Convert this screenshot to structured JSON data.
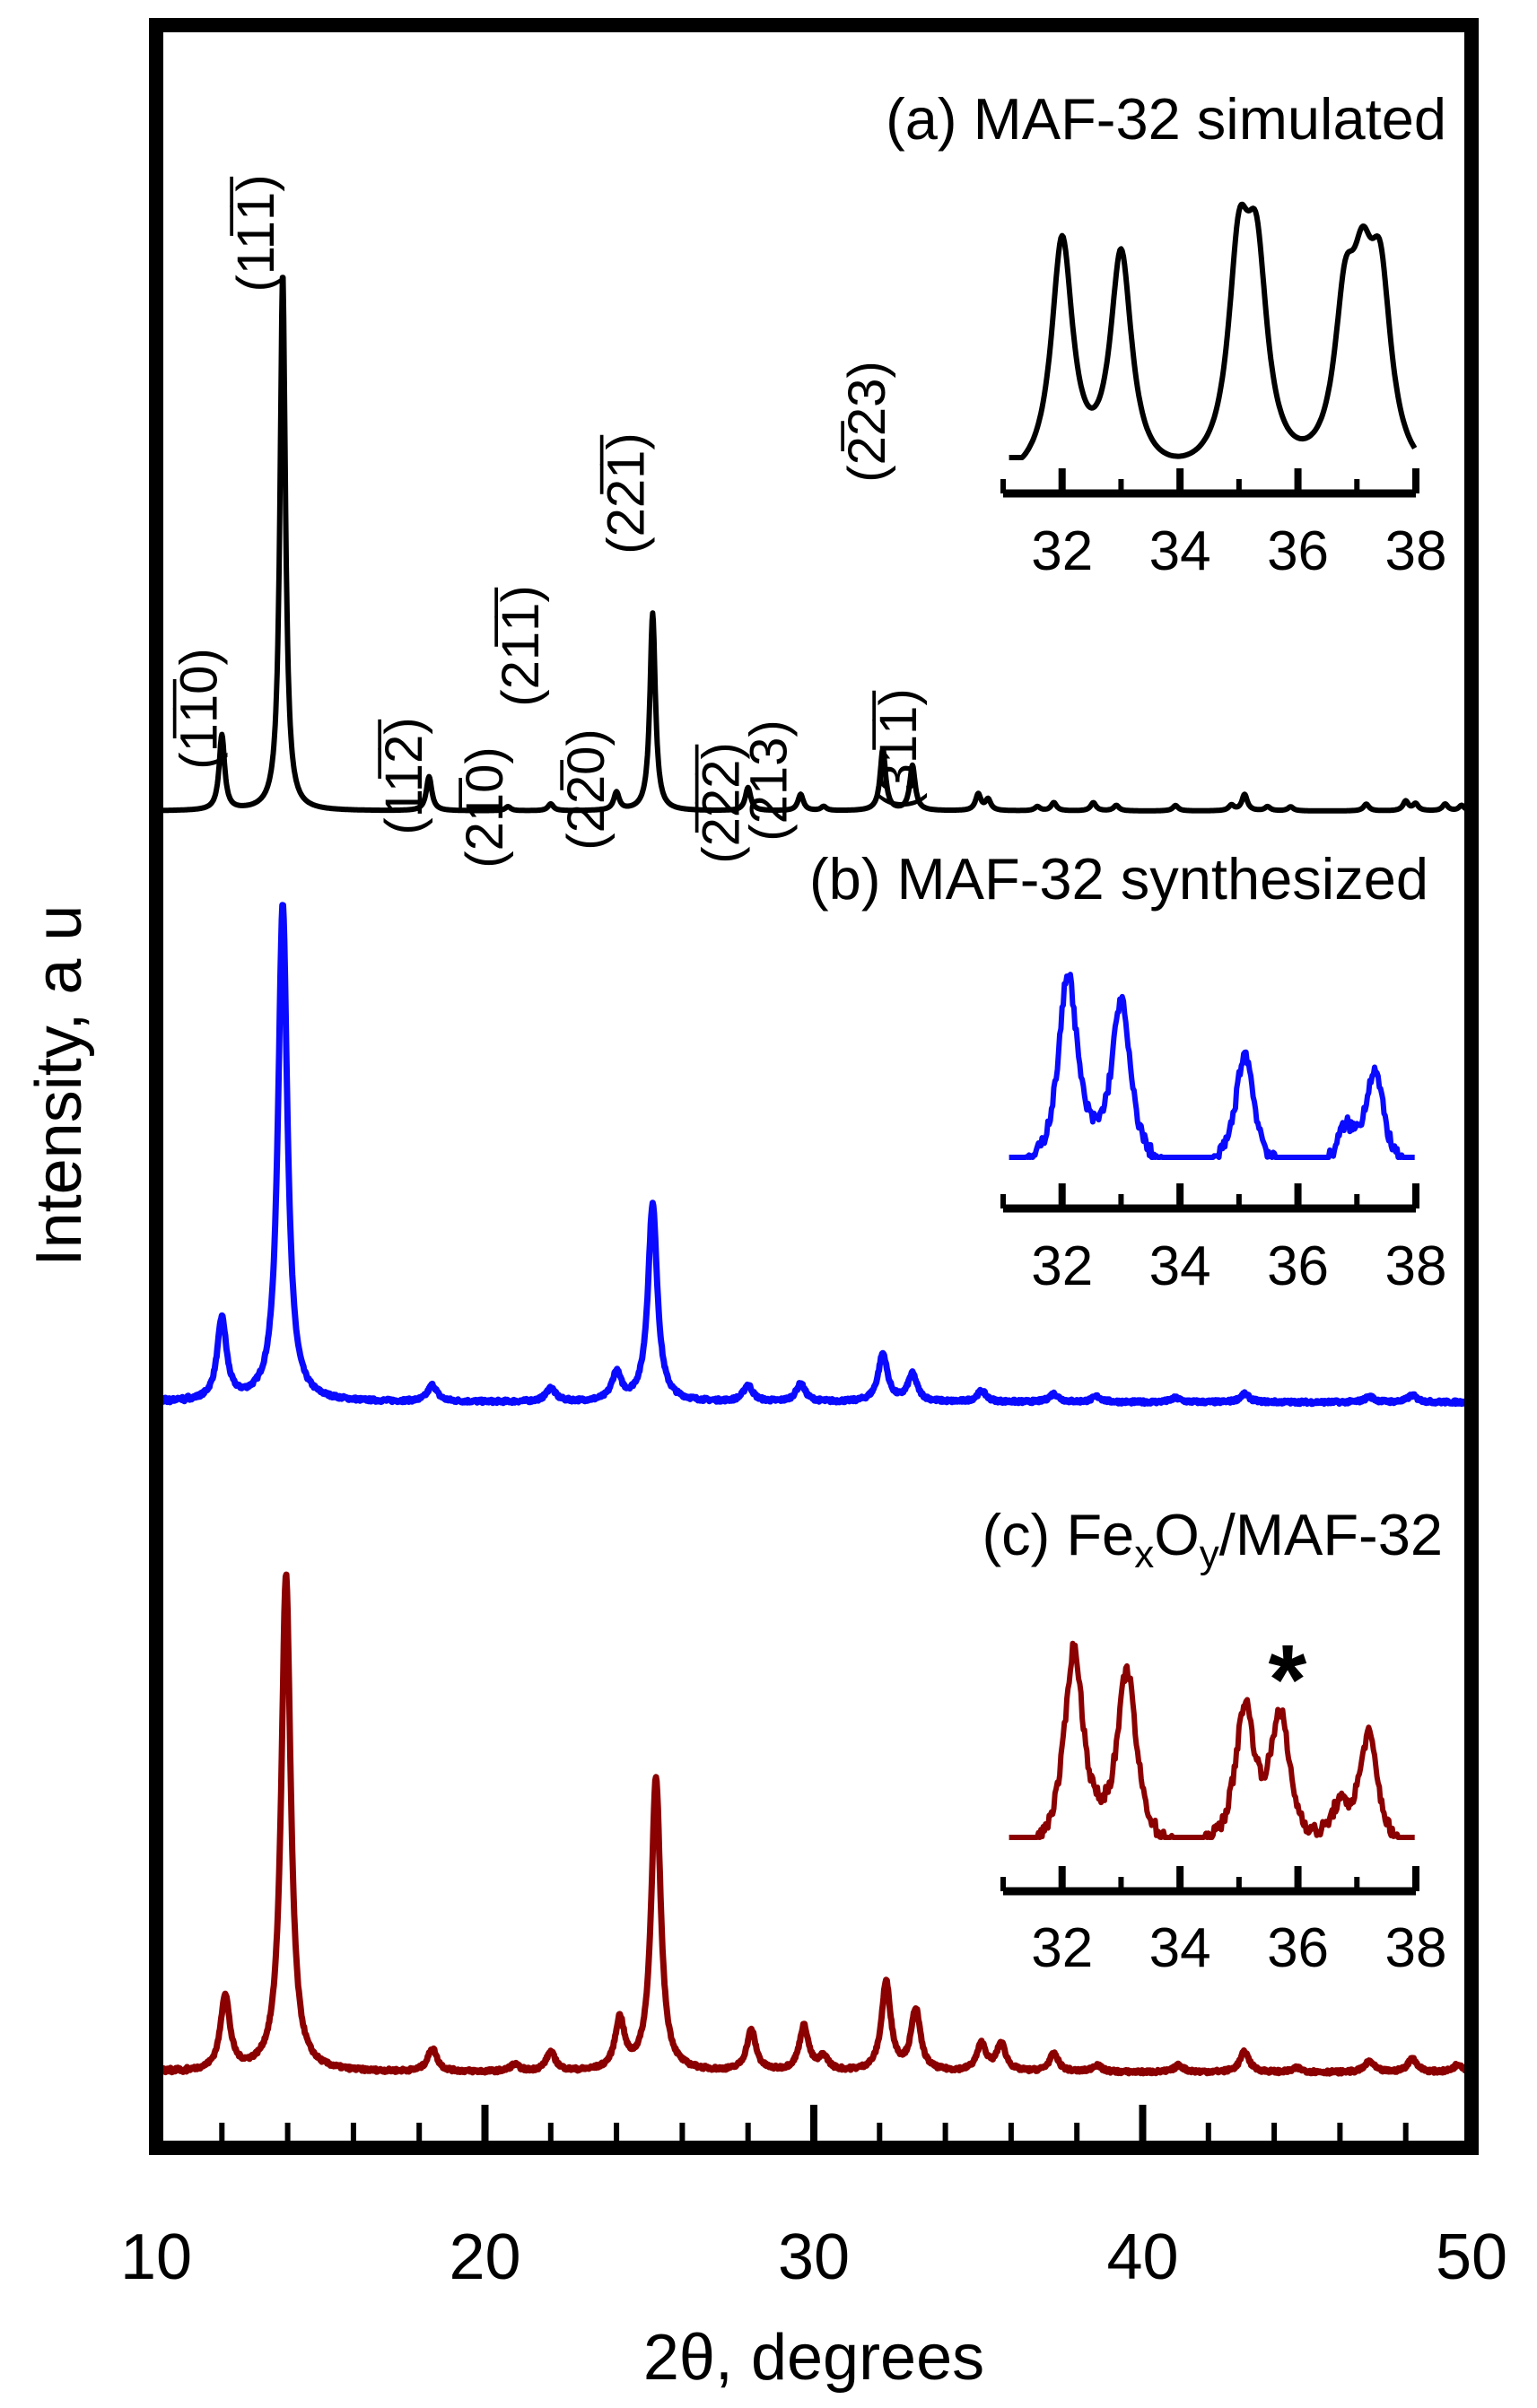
{
  "chart_data": {
    "type": "line",
    "title": "",
    "xlabel": "2θ, degrees",
    "ylabel": "Intensity, a u",
    "xlim": [
      10,
      50
    ],
    "xticks": [
      "10",
      "20",
      "30",
      "40",
      "50"
    ],
    "stacked": true,
    "series": [
      {
        "name": "(a) MAF-32 simulated",
        "label_main": "(a) MAF-32 simulated",
        "color": "#000000",
        "peaks": [
          {
            "x": 12.0,
            "h": 0.55,
            "w": 0.1
          },
          {
            "x": 13.85,
            "h": 3.95,
            "w": 0.1
          },
          {
            "x": 18.3,
            "h": 0.25,
            "w": 0.1
          },
          {
            "x": 20.7,
            "h": 0.03,
            "w": 0.1
          },
          {
            "x": 22.0,
            "h": 0.05,
            "w": 0.1
          },
          {
            "x": 24.0,
            "h": 0.13,
            "w": 0.1
          },
          {
            "x": 25.1,
            "h": 1.45,
            "w": 0.1
          },
          {
            "x": 28.0,
            "h": 0.17,
            "w": 0.1
          },
          {
            "x": 29.6,
            "h": 0.12,
            "w": 0.1
          },
          {
            "x": 30.3,
            "h": 0.03,
            "w": 0.1
          },
          {
            "x": 32.1,
            "h": 0.45,
            "w": 0.1
          },
          {
            "x": 33.0,
            "h": 0.33,
            "w": 0.1
          },
          {
            "x": 35.0,
            "h": 0.12,
            "w": 0.1
          },
          {
            "x": 35.3,
            "h": 0.08,
            "w": 0.1
          },
          {
            "x": 36.8,
            "h": 0.03,
            "w": 0.1
          },
          {
            "x": 37.3,
            "h": 0.06,
            "w": 0.1
          },
          {
            "x": 38.5,
            "h": 0.06,
            "w": 0.1
          },
          {
            "x": 39.2,
            "h": 0.04,
            "w": 0.1
          },
          {
            "x": 41.0,
            "h": 0.04,
            "w": 0.1
          },
          {
            "x": 42.7,
            "h": 0.04,
            "w": 0.1
          },
          {
            "x": 43.1,
            "h": 0.12,
            "w": 0.1
          },
          {
            "x": 43.8,
            "h": 0.03,
            "w": 0.1
          },
          {
            "x": 44.5,
            "h": 0.03,
            "w": 0.1
          },
          {
            "x": 46.8,
            "h": 0.05,
            "w": 0.1
          },
          {
            "x": 48.0,
            "h": 0.07,
            "w": 0.1
          },
          {
            "x": 48.3,
            "h": 0.05,
            "w": 0.1
          },
          {
            "x": 49.2,
            "h": 0.05,
            "w": 0.1
          },
          {
            "x": 49.7,
            "h": 0.04,
            "w": 0.1
          }
        ],
        "reflections": [
          {
            "label": "(1̅1̅0)",
            "x": 12.0
          },
          {
            "label": "(11̅1̅)",
            "x": 13.85
          },
          {
            "label": "(11̅2̅)",
            "x": 18.3
          },
          {
            "label": "(21̅0)",
            "x": 20.7
          },
          {
            "label": "(21̅1̅)",
            "x": 22.0
          },
          {
            "label": "(22̅0)",
            "x": 24.0
          },
          {
            "label": "(22̅1̅)",
            "x": 25.1
          },
          {
            "label": "(2̅2̅2̅)",
            "x": 28.0
          },
          {
            "label": "(213)",
            "x": 29.6
          },
          {
            "label": "(2̅23)",
            "x": 32.1
          },
          {
            "label": "(31̅1̅)",
            "x": 33.0
          }
        ],
        "inset": {
          "x": [
            32,
            33,
            35,
            35.3,
            36.8,
            37.1,
            37.4
          ],
          "peak_heights": [
            1.0,
            0.93,
            0.84,
            0.8,
            0.62,
            0.6,
            0.72
          ],
          "xlim": [
            31,
            38
          ],
          "xticks": [
            "32",
            "34",
            "36",
            "38"
          ]
        }
      },
      {
        "name": "(b) MAF-32 synthesized",
        "label_main": "(b) MAF-32 synthesized",
        "color": "#0a0aff",
        "peaks": [
          {
            "x": 12.0,
            "h": 0.6,
            "w": 0.17
          },
          {
            "x": 13.85,
            "h": 3.65,
            "w": 0.17
          },
          {
            "x": 18.4,
            "h": 0.12,
            "w": 0.17
          },
          {
            "x": 22.0,
            "h": 0.1,
            "w": 0.17
          },
          {
            "x": 24.0,
            "h": 0.2,
            "w": 0.17
          },
          {
            "x": 25.1,
            "h": 1.45,
            "w": 0.17
          },
          {
            "x": 28.0,
            "h": 0.12,
            "w": 0.17
          },
          {
            "x": 29.6,
            "h": 0.13,
            "w": 0.17
          },
          {
            "x": 32.1,
            "h": 0.35,
            "w": 0.17
          },
          {
            "x": 33.0,
            "h": 0.2,
            "w": 0.17
          },
          {
            "x": 35.1,
            "h": 0.08,
            "w": 0.17
          },
          {
            "x": 37.3,
            "h": 0.06,
            "w": 0.17
          },
          {
            "x": 38.6,
            "h": 0.04,
            "w": 0.17
          },
          {
            "x": 41.0,
            "h": 0.03,
            "w": 0.17
          },
          {
            "x": 43.1,
            "h": 0.06,
            "w": 0.17
          },
          {
            "x": 46.9,
            "h": 0.04,
            "w": 0.17
          },
          {
            "x": 48.2,
            "h": 0.05,
            "w": 0.17
          }
        ],
        "inset": {
          "x": [
            32.1,
            33.0,
            35.1,
            37.3
          ],
          "peak_heights": [
            1.0,
            0.85,
            0.62,
            0.52
          ],
          "shoulders": [
            {
              "x": 36.8,
              "h": 0.2
            }
          ],
          "xlim": [
            31,
            38
          ],
          "xticks": [
            "32",
            "34",
            "36",
            "38"
          ]
        }
      },
      {
        "name": "(c) FexOy/MAF-32",
        "label_prefix": "(c) Fe",
        "label_sub1": "x",
        "label_mid": "O",
        "label_sub2": "y",
        "label_suffix": "/MAF-32",
        "color": "#8b0000",
        "peaks": [
          {
            "x": 12.1,
            "h": 0.55,
            "w": 0.17
          },
          {
            "x": 13.95,
            "h": 3.65,
            "w": 0.17
          },
          {
            "x": 18.4,
            "h": 0.17,
            "w": 0.17
          },
          {
            "x": 20.9,
            "h": 0.05,
            "w": 0.17
          },
          {
            "x": 22.0,
            "h": 0.14,
            "w": 0.17
          },
          {
            "x": 24.1,
            "h": 0.37,
            "w": 0.17
          },
          {
            "x": 25.2,
            "h": 2.15,
            "w": 0.17
          },
          {
            "x": 28.1,
            "h": 0.3,
            "w": 0.17
          },
          {
            "x": 29.7,
            "h": 0.33,
            "w": 0.17
          },
          {
            "x": 30.3,
            "h": 0.1,
            "w": 0.17
          },
          {
            "x": 32.2,
            "h": 0.65,
            "w": 0.17
          },
          {
            "x": 33.1,
            "h": 0.45,
            "w": 0.17
          },
          {
            "x": 35.1,
            "h": 0.2,
            "w": 0.17
          },
          {
            "x": 35.7,
            "h": 0.2,
            "w": 0.17
          },
          {
            "x": 37.3,
            "h": 0.13,
            "w": 0.17
          },
          {
            "x": 38.6,
            "h": 0.05,
            "w": 0.17
          },
          {
            "x": 41.1,
            "h": 0.05,
            "w": 0.17
          },
          {
            "x": 43.1,
            "h": 0.15,
            "w": 0.17
          },
          {
            "x": 44.7,
            "h": 0.03,
            "w": 0.17
          },
          {
            "x": 46.9,
            "h": 0.08,
            "w": 0.17
          },
          {
            "x": 48.2,
            "h": 0.1,
            "w": 0.17
          },
          {
            "x": 49.6,
            "h": 0.06,
            "w": 0.17
          }
        ],
        "inset": {
          "x": [
            32.2,
            33.1,
            35.1,
            35.7,
            37.2
          ],
          "peak_heights": [
            1.0,
            0.88,
            0.7,
            0.65,
            0.58
          ],
          "shoulders": [
            {
              "x": 36.7,
              "h": 0.18
            }
          ],
          "marker": "*",
          "marker_x": 35.7,
          "xlim": [
            31,
            38
          ],
          "xticks": [
            "32",
            "34",
            "36",
            "38"
          ]
        }
      }
    ]
  }
}
